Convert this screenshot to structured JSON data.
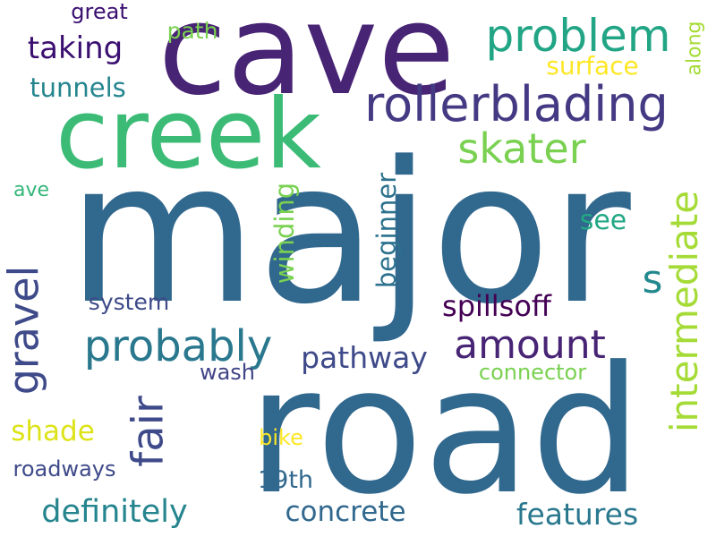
{
  "word_cloud": {
    "background": "#ffffff",
    "words": [
      {
        "text": "cave",
        "color": "#482475"
      },
      {
        "text": "major",
        "color": "#31688e"
      },
      {
        "text": "road",
        "color": "#31688e"
      },
      {
        "text": "creek",
        "color": "#3bbb75"
      },
      {
        "text": "rollerblading",
        "color": "#443983"
      },
      {
        "text": "problem",
        "color": "#21a585"
      },
      {
        "text": "skater",
        "color": "#7ad151"
      },
      {
        "text": "probably",
        "color": "#2a788e"
      },
      {
        "text": "amount",
        "color": "#482475"
      },
      {
        "text": "intermediate",
        "color": "#a5db36"
      },
      {
        "text": "gravel",
        "color": "#3e4a89"
      },
      {
        "text": "fair",
        "color": "#3e4a89"
      },
      {
        "text": "definitely",
        "color": "#25858e"
      },
      {
        "text": "features",
        "color": "#2a788e"
      },
      {
        "text": "concrete",
        "color": "#31688e"
      },
      {
        "text": "taking",
        "color": "#3b0f70"
      },
      {
        "text": "tunnels",
        "color": "#25858e"
      },
      {
        "text": "surface",
        "color": "#fde725"
      },
      {
        "text": "path",
        "color": "#7ad151"
      },
      {
        "text": "great",
        "color": "#3b0f70"
      },
      {
        "text": "along",
        "color": "#a5db36"
      },
      {
        "text": "s",
        "color": "#23898e"
      },
      {
        "text": "see",
        "color": "#22a884"
      },
      {
        "text": "beginner",
        "color": "#2c728e"
      },
      {
        "text": "winding",
        "color": "#7ad151"
      },
      {
        "text": "spillsoff",
        "color": "#440154"
      },
      {
        "text": "pathway",
        "color": "#3e4a89"
      },
      {
        "text": "ave",
        "color": "#35b779"
      },
      {
        "text": "system",
        "color": "#3e4a89"
      },
      {
        "text": "wash",
        "color": "#414487"
      },
      {
        "text": "connector",
        "color": "#7ad151"
      },
      {
        "text": "shade",
        "color": "#dde318"
      },
      {
        "text": "bike",
        "color": "#fde725"
      },
      {
        "text": "roadways",
        "color": "#3e4a89"
      },
      {
        "text": "19th",
        "color": "#31688e"
      }
    ]
  }
}
